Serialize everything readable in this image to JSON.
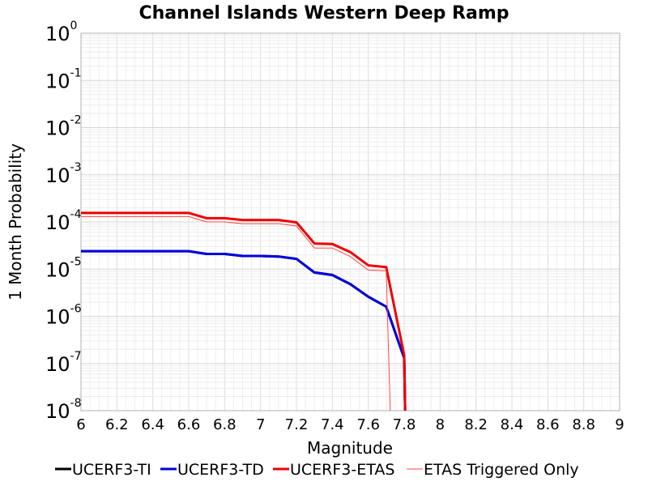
{
  "chart_data": {
    "type": "line",
    "title": "Channel Islands Western Deep Ramp",
    "xlabel": "Magnitude",
    "ylabel": "1 Month Probability",
    "xlim": [
      6,
      9
    ],
    "ylim": [
      1e-08,
      1
    ],
    "yscale": "log",
    "grid": true,
    "legend_position": "bottom",
    "x_ticks": [
      "6",
      "6.2",
      "6.4",
      "6.6",
      "6.8",
      "7",
      "7.2",
      "7.4",
      "7.6",
      "7.8",
      "8",
      "8.2",
      "8.4",
      "8.6",
      "8.8",
      "9"
    ],
    "y_tick_base": "10",
    "y_tick_exponents": [
      "0",
      "-1",
      "-2",
      "-3",
      "-4",
      "-5",
      "-6",
      "-7",
      "-8"
    ],
    "series": [
      {
        "name": "UCERF3-TI",
        "color": "#000000",
        "width": 3,
        "x": [
          6.0,
          6.1,
          6.2,
          6.3,
          6.4,
          6.5,
          6.6,
          6.7,
          6.8,
          6.9,
          7.0,
          7.1,
          7.2,
          7.3,
          7.4,
          7.5,
          7.6,
          7.7,
          7.8,
          7.81
        ],
        "y": [
          2.4e-05,
          2.4e-05,
          2.4e-05,
          2.4e-05,
          2.4e-05,
          2.4e-05,
          2.4e-05,
          2.1e-05,
          2.1e-05,
          1.9e-05,
          1.9e-05,
          1.85e-05,
          1.65e-05,
          8.5e-06,
          7.5e-06,
          4.8e-06,
          2.6e-06,
          1.6e-06,
          1.3e-07,
          1e-09
        ]
      },
      {
        "name": "UCERF3-TD",
        "color": "#0000e0",
        "width": 3,
        "x": [
          6.0,
          6.1,
          6.2,
          6.3,
          6.4,
          6.5,
          6.6,
          6.7,
          6.8,
          6.9,
          7.0,
          7.1,
          7.2,
          7.3,
          7.4,
          7.5,
          7.6,
          7.7,
          7.8,
          7.81
        ],
        "y": [
          2.4e-05,
          2.4e-05,
          2.4e-05,
          2.4e-05,
          2.4e-05,
          2.4e-05,
          2.4e-05,
          2.1e-05,
          2.1e-05,
          1.9e-05,
          1.9e-05,
          1.85e-05,
          1.65e-05,
          8.5e-06,
          7.5e-06,
          4.8e-06,
          2.6e-06,
          1.6e-06,
          1.3e-07,
          1e-09
        ]
      },
      {
        "name": "UCERF3-ETAS",
        "color": "#ee0000",
        "width": 3,
        "x": [
          6.0,
          6.1,
          6.2,
          6.3,
          6.4,
          6.5,
          6.6,
          6.7,
          6.8,
          6.9,
          7.0,
          7.1,
          7.2,
          7.3,
          7.4,
          7.5,
          7.6,
          7.7,
          7.8,
          7.81
        ],
        "y": [
          0.000155,
          0.000155,
          0.000155,
          0.000155,
          0.000155,
          0.000155,
          0.000155,
          0.00012,
          0.00012,
          0.00011,
          0.00011,
          0.00011,
          9.8e-05,
          3.5e-05,
          3.4e-05,
          2.3e-05,
          1.2e-05,
          1.1e-05,
          1.5e-07,
          1e-09
        ]
      },
      {
        "name": "ETAS Triggered Only",
        "color": "#ff4444",
        "width": 1,
        "x": [
          6.0,
          6.1,
          6.2,
          6.3,
          6.4,
          6.5,
          6.6,
          6.7,
          6.8,
          6.9,
          7.0,
          7.1,
          7.2,
          7.3,
          7.4,
          7.5,
          7.6,
          7.7,
          7.73
        ],
        "y": [
          0.00013,
          0.00013,
          0.00013,
          0.00013,
          0.00013,
          0.00013,
          0.00013,
          0.0001,
          0.0001,
          9.2e-05,
          9.2e-05,
          9.2e-05,
          8.2e-05,
          2.8e-05,
          2.8e-05,
          1.85e-05,
          9.5e-06,
          9.2e-06,
          1e-09
        ]
      }
    ]
  }
}
